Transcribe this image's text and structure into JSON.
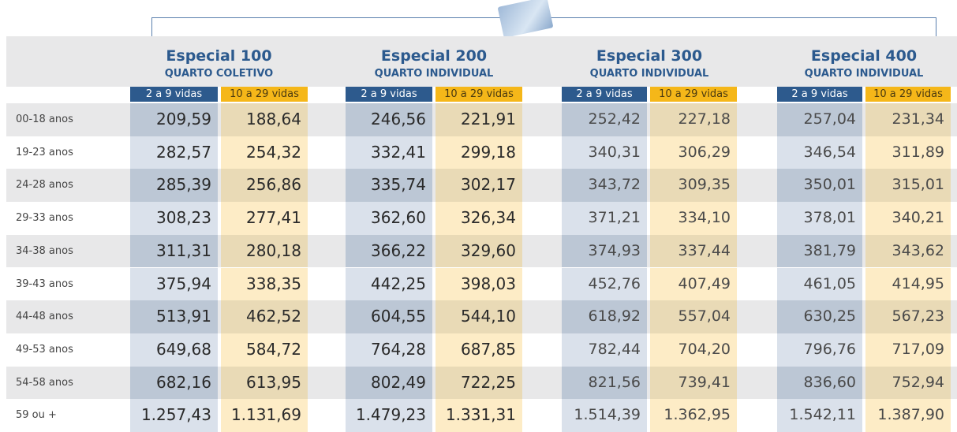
{
  "plans": [
    {
      "name": "Especial 100",
      "room": "QUARTO COLETIVO",
      "groups": [
        "2 a 9 vidas",
        "10 a 29 vidas"
      ]
    },
    {
      "name": "Especial 200",
      "room": "QUARTO INDIVIDUAL",
      "groups": [
        "2 a 9 vidas",
        "10 a 29 vidas"
      ]
    },
    {
      "name": "Especial 300",
      "room": "QUARTO INDIVIDUAL",
      "groups": [
        "2 a 9 vidas",
        "10 a 29 vidas"
      ]
    },
    {
      "name": "Especial 400",
      "room": "QUARTO INDIVIDUAL",
      "groups": [
        "2 a 9 vidas",
        "10 a 29 vidas"
      ]
    }
  ],
  "rows": [
    {
      "label": "00-18 anos",
      "values": [
        "209,59",
        "188,64",
        "246,56",
        "221,91",
        "252,42",
        "227,18",
        "257,04",
        "231,34"
      ]
    },
    {
      "label": "19-23 anos",
      "values": [
        "282,57",
        "254,32",
        "332,41",
        "299,18",
        "340,31",
        "306,29",
        "346,54",
        "311,89"
      ]
    },
    {
      "label": "24-28 anos",
      "values": [
        "285,39",
        "256,86",
        "335,74",
        "302,17",
        "343,72",
        "309,35",
        "350,01",
        "315,01"
      ]
    },
    {
      "label": "29-33 anos",
      "values": [
        "308,23",
        "277,41",
        "362,60",
        "326,34",
        "371,21",
        "334,10",
        "378,01",
        "340,21"
      ]
    },
    {
      "label": "34-38 anos",
      "values": [
        "311,31",
        "280,18",
        "366,22",
        "329,60",
        "374,93",
        "337,44",
        "381,79",
        "343,62"
      ]
    },
    {
      "label": "39-43 anos",
      "values": [
        "375,94",
        "338,35",
        "442,25",
        "398,03",
        "452,76",
        "407,49",
        "461,05",
        "414,95"
      ]
    },
    {
      "label": "44-48 anos",
      "values": [
        "513,91",
        "462,52",
        "604,55",
        "544,10",
        "618,92",
        "557,04",
        "630,25",
        "567,23"
      ]
    },
    {
      "label": "49-53 anos",
      "values": [
        "649,68",
        "584,72",
        "764,28",
        "687,85",
        "782,44",
        "704,20",
        "796,76",
        "717,09"
      ]
    },
    {
      "label": "54-58 anos",
      "values": [
        "682,16",
        "613,95",
        "802,49",
        "722,25",
        "821,56",
        "739,41",
        "836,60",
        "752,94"
      ]
    },
    {
      "label": "59 ou +",
      "values": [
        "1.257,43",
        "1.131,69",
        "1.479,23",
        "1.331,31",
        "1.514,39",
        "1.362,95",
        "1.542,11",
        "1.387,90"
      ]
    }
  ]
}
